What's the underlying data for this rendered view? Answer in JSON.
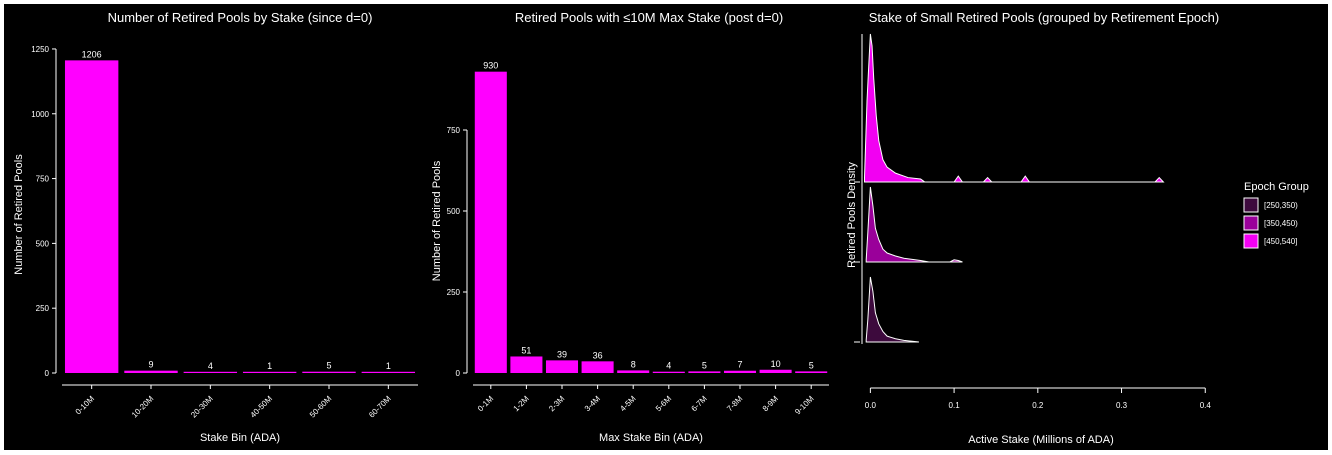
{
  "colors": {
    "background": "#000000",
    "foreground": "#ffffff",
    "bar": "#ff00ff",
    "epoch_250_350": "#3d0a3d",
    "epoch_350_450": "#9a009a",
    "epoch_450_540": "#f200f2"
  },
  "chart_data": [
    {
      "type": "bar",
      "title": "Number of Retired Pools by Stake (since d=0)",
      "xlabel": "Stake Bin (ADA)",
      "ylabel": "Number of Retired Pools",
      "categories": [
        "0-10M",
        "10-20M",
        "20-30M",
        "40-50M",
        "50-60M",
        "60-70M"
      ],
      "values": [
        1206,
        9,
        4,
        1,
        5,
        1
      ],
      "value_labels": [
        "1206",
        "9",
        "4",
        "1",
        "5",
        "1"
      ],
      "ylim": [
        0,
        1300
      ],
      "yticks": [
        0,
        250,
        500,
        750,
        1000,
        1250
      ],
      "ytick_labels": [
        "0",
        "250",
        "500",
        "750",
        "1000",
        "1250"
      ]
    },
    {
      "type": "bar",
      "title": "Retired Pools with ≤10M Max Stake (post d=0)",
      "xlabel": "Max Stake Bin (ADA)",
      "ylabel": "Number of Retired Pools",
      "categories": [
        "0-1M",
        "1-2M",
        "2-3M",
        "3-4M",
        "4-5M",
        "5-6M",
        "6-7M",
        "7-8M",
        "8-9M",
        "9-10M"
      ],
      "values": [
        930,
        51,
        39,
        36,
        8,
        4,
        5,
        7,
        10,
        5
      ],
      "value_labels": [
        "930",
        "51",
        "39",
        "36",
        "8",
        "4",
        "5",
        "7",
        "10",
        "5"
      ],
      "ylim": [
        0,
        1000
      ],
      "yticks": [
        0,
        250,
        500,
        750
      ],
      "ytick_labels": [
        "0",
        "250",
        "500",
        "750"
      ]
    },
    {
      "type": "area",
      "title": "Stake of Small Retired Pools (grouped by Retirement Epoch)",
      "xlabel": "Active Stake (Millions of ADA)",
      "ylabel": "Retired Pools Density",
      "xlim": [
        -0.01,
        0.42
      ],
      "xticks": [
        0.0,
        0.1,
        0.2,
        0.3,
        0.4
      ],
      "xtick_labels": [
        "0.0",
        "0.1",
        "0.2",
        "0.3",
        "0.4"
      ],
      "legend": {
        "title": "Epoch Group",
        "placement": "right",
        "entries": [
          "[250,350)",
          "[350,450)",
          "[450,540]"
        ]
      },
      "series": [
        {
          "name": "[250,350)",
          "x": [
            -0.005,
            -0.003,
            0.0,
            0.003,
            0.006,
            0.01,
            0.015,
            0.02,
            0.03,
            0.04,
            0.05,
            0.058
          ],
          "density": [
            0.03,
            0.35,
            1.0,
            0.78,
            0.45,
            0.28,
            0.16,
            0.09,
            0.05,
            0.025,
            0.012,
            0.0
          ]
        },
        {
          "name": "[350,450)",
          "x": [
            -0.005,
            -0.003,
            0.0,
            0.003,
            0.006,
            0.01,
            0.015,
            0.02,
            0.03,
            0.04,
            0.05,
            0.06,
            0.07,
            0.095,
            0.1,
            0.105,
            0.11
          ],
          "density": [
            0.03,
            0.4,
            1.0,
            0.75,
            0.45,
            0.3,
            0.17,
            0.12,
            0.08,
            0.05,
            0.035,
            0.02,
            0.0,
            0.0,
            0.03,
            0.02,
            0.0
          ]
        },
        {
          "name": "[450,540]",
          "x": [
            -0.007,
            -0.004,
            -0.002,
            0.0,
            0.002,
            0.004,
            0.007,
            0.01,
            0.015,
            0.02,
            0.03,
            0.045,
            0.06,
            0.065,
            0.1,
            0.105,
            0.11,
            0.135,
            0.14,
            0.145,
            0.18,
            0.185,
            0.19,
            0.34,
            0.345,
            0.35
          ],
          "density": [
            0.03,
            0.55,
            0.78,
            1.0,
            0.92,
            0.7,
            0.45,
            0.28,
            0.15,
            0.1,
            0.06,
            0.03,
            0.02,
            0.0,
            0.0,
            0.04,
            0.0,
            0.0,
            0.03,
            0.0,
            0.0,
            0.04,
            0.0,
            0.0,
            0.03,
            0.0
          ]
        }
      ]
    }
  ]
}
